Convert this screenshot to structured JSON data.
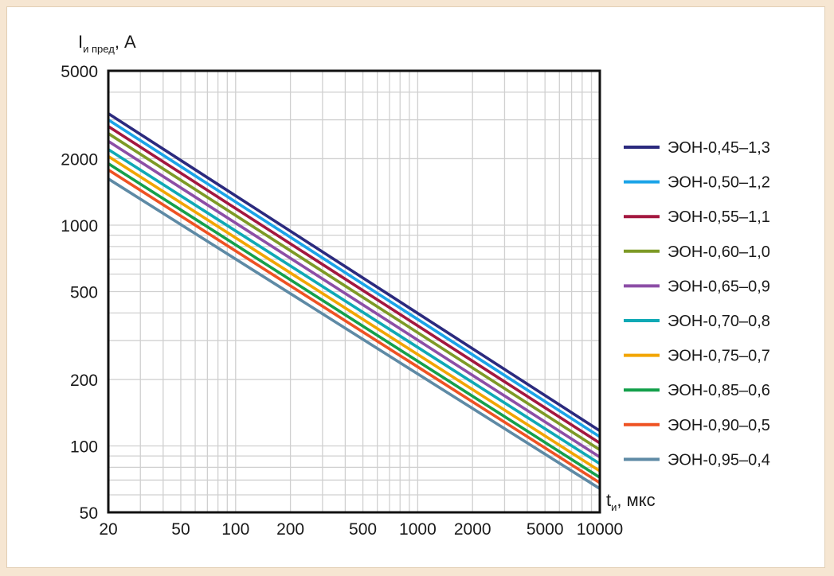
{
  "chart_data": {
    "type": "line",
    "title": "",
    "xlabel": {
      "main": "t",
      "sub": "и",
      "unit": ", мкс"
    },
    "ylabel": {
      "main": "I",
      "sub": "и пред",
      "unit": ", А"
    },
    "x_scale": "log",
    "y_scale": "log",
    "xlim": [
      20,
      10000
    ],
    "ylim": [
      50,
      5000
    ],
    "x_ticks": [
      "20",
      "50",
      "100",
      "200",
      "500",
      "1000",
      "2000",
      "5000",
      "10000"
    ],
    "y_ticks": [
      "5000",
      "2000",
      "1000",
      "500",
      "200",
      "100",
      "50"
    ],
    "grid": true,
    "legend_position": "right",
    "series": [
      {
        "name": "ЭОН-0,45–1,3",
        "color": "#2b2a7e",
        "x": [
          20,
          10000
        ],
        "y": [
          3200,
          117
        ]
      },
      {
        "name": "ЭОН-0,50–1,2",
        "color": "#1aa3e8",
        "x": [
          20,
          10000
        ],
        "y": [
          3000,
          110
        ]
      },
      {
        "name": "ЭОН-0,55–1,1",
        "color": "#a3173f",
        "x": [
          20,
          10000
        ],
        "y": [
          2800,
          103
        ]
      },
      {
        "name": "ЭОН-0,60–1,0",
        "color": "#7d9a26",
        "x": [
          20,
          10000
        ],
        "y": [
          2600,
          96
        ]
      },
      {
        "name": "ЭОН-0,65–0,9",
        "color": "#8c4ea6",
        "x": [
          20,
          10000
        ],
        "y": [
          2400,
          89
        ]
      },
      {
        "name": "ЭОН-0,70–0,8",
        "color": "#0fa9b5",
        "x": [
          20,
          10000
        ],
        "y": [
          2200,
          83
        ]
      },
      {
        "name": "ЭОН-0,75–0,7",
        "color": "#f2a500",
        "x": [
          20,
          10000
        ],
        "y": [
          2050,
          77
        ]
      },
      {
        "name": "ЭОН-0,85–0,6",
        "color": "#14a04b",
        "x": [
          20,
          10000
        ],
        "y": [
          1900,
          72
        ]
      },
      {
        "name": "ЭОН-0,90–0,5",
        "color": "#ee5222",
        "x": [
          20,
          10000
        ],
        "y": [
          1780,
          68
        ]
      },
      {
        "name": "ЭОН-0,95–0,4",
        "color": "#5e8aa5",
        "x": [
          20,
          10000
        ],
        "y": [
          1620,
          64
        ]
      }
    ]
  }
}
